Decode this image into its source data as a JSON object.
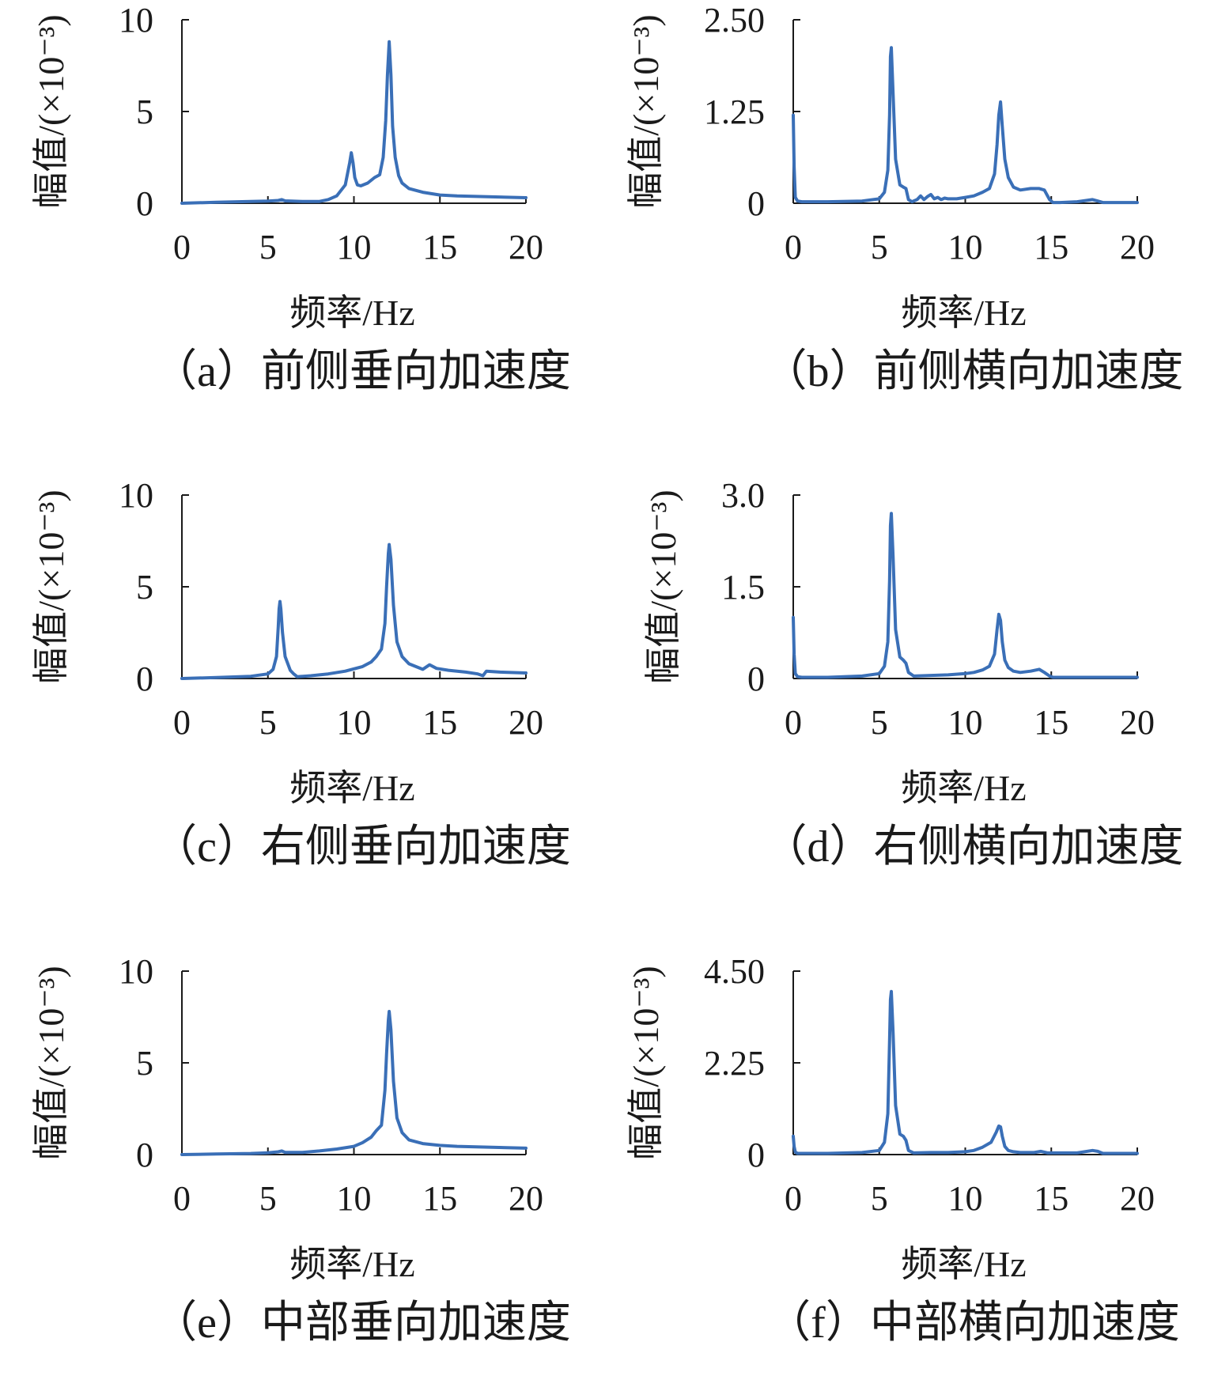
{
  "style": {
    "line_color": "#3a6fb7",
    "axis_color": "#1a1a1a"
  },
  "chart_data": [
    {
      "type": "line",
      "caption": "（a）前侧垂向加速度",
      "xlabel": "频率/Hz",
      "ylabel": "幅值/(×10⁻³)",
      "xlim": [
        0,
        20
      ],
      "ylim": [
        0,
        10
      ],
      "xticks": [
        "0",
        "5",
        "10",
        "15",
        "20"
      ],
      "yticks": [
        "0",
        "5",
        "10"
      ],
      "grid": false,
      "series": [
        {
          "x": [
            0,
            2,
            4,
            5,
            5.6,
            5.8,
            6,
            7,
            8,
            8.5,
            9,
            9.5,
            9.75,
            9.85,
            9.95,
            10.05,
            10.2,
            10.4,
            10.8,
            11.2,
            11.5,
            11.7,
            11.85,
            11.95,
            12.05,
            12.15,
            12.25,
            12.4,
            12.6,
            12.8,
            13.2,
            14,
            15,
            16,
            18,
            20
          ],
          "y": [
            0,
            0.05,
            0.1,
            0.12,
            0.15,
            0.2,
            0.13,
            0.1,
            0.1,
            0.2,
            0.4,
            1.0,
            2.2,
            2.75,
            2.2,
            1.4,
            1.0,
            0.95,
            1.1,
            1.4,
            1.55,
            2.5,
            4.5,
            7.0,
            8.8,
            7.0,
            4.2,
            2.5,
            1.5,
            1.1,
            0.8,
            0.6,
            0.45,
            0.4,
            0.35,
            0.3
          ]
        }
      ]
    },
    {
      "type": "line",
      "caption": "（b）前侧横向加速度",
      "xlabel": "频率/Hz",
      "ylabel": "幅值/(×10⁻³)",
      "xlim": [
        0,
        20
      ],
      "ylim": [
        0,
        2.5
      ],
      "xticks": [
        "0",
        "5",
        "10",
        "15",
        "20"
      ],
      "yticks": [
        "0",
        "1.25",
        "2.50"
      ],
      "grid": false,
      "series": [
        {
          "x": [
            0,
            0.05,
            0.12,
            0.25,
            0.5,
            2,
            4,
            5,
            5.3,
            5.5,
            5.6,
            5.65,
            5.7,
            5.8,
            5.95,
            6.2,
            6.4,
            6.55,
            6.7,
            6.9,
            7.2,
            7.4,
            7.6,
            7.8,
            8.0,
            8.2,
            8.4,
            8.6,
            8.8,
            9.0,
            9.5,
            10,
            10.5,
            11,
            11.4,
            11.7,
            11.85,
            11.95,
            12.05,
            12.15,
            12.3,
            12.5,
            12.8,
            13.2,
            13.8,
            14.3,
            14.6,
            14.9,
            15.1,
            15.5,
            16.5,
            17.4,
            17.7,
            18,
            19,
            20
          ],
          "y": [
            1.2,
            0.5,
            0.08,
            0.03,
            0.02,
            0.02,
            0.03,
            0.06,
            0.15,
            0.45,
            1.2,
            2.0,
            2.12,
            1.5,
            0.6,
            0.25,
            0.22,
            0.2,
            0.05,
            0.02,
            0.05,
            0.1,
            0.05,
            0.09,
            0.12,
            0.06,
            0.08,
            0.05,
            0.07,
            0.06,
            0.06,
            0.08,
            0.1,
            0.15,
            0.2,
            0.4,
            0.8,
            1.2,
            1.38,
            1.05,
            0.6,
            0.35,
            0.22,
            0.18,
            0.2,
            0.2,
            0.18,
            0.05,
            0.01,
            0.01,
            0.02,
            0.05,
            0.03,
            0.01,
            0.01,
            0.01
          ]
        }
      ]
    },
    {
      "type": "line",
      "caption": "（c）右侧垂向加速度",
      "xlabel": "频率/Hz",
      "ylabel": "幅值/(×10⁻³)",
      "xlim": [
        0,
        20
      ],
      "ylim": [
        0,
        10
      ],
      "xticks": [
        "0",
        "5",
        "10",
        "15",
        "20"
      ],
      "yticks": [
        "0",
        "5",
        "10"
      ],
      "grid": false,
      "series": [
        {
          "x": [
            0,
            2,
            4,
            5,
            5.3,
            5.5,
            5.6,
            5.65,
            5.7,
            5.75,
            5.85,
            6.0,
            6.3,
            6.5,
            6.7,
            7.5,
            8.5,
            9.5,
            10.5,
            11,
            11.3,
            11.6,
            11.8,
            11.9,
            12.0,
            12.05,
            12.15,
            12.3,
            12.5,
            12.8,
            13.2,
            14,
            14.4,
            14.8,
            15.5,
            16.5,
            17.2,
            17.5,
            17.7,
            18.5,
            20
          ],
          "y": [
            0,
            0.05,
            0.12,
            0.25,
            0.5,
            1.2,
            2.8,
            3.8,
            4.2,
            3.8,
            2.5,
            1.2,
            0.45,
            0.25,
            0.1,
            0.15,
            0.25,
            0.4,
            0.65,
            0.9,
            1.2,
            1.6,
            3.0,
            5.0,
            6.8,
            7.3,
            6.5,
            4.0,
            2.0,
            1.2,
            0.8,
            0.5,
            0.75,
            0.55,
            0.45,
            0.35,
            0.25,
            0.15,
            0.4,
            0.35,
            0.3
          ]
        }
      ]
    },
    {
      "type": "line",
      "caption": "（d）右侧横向加速度",
      "xlabel": "频率/Hz",
      "ylabel": "幅值/(×10⁻³)",
      "xlim": [
        0,
        20
      ],
      "ylim": [
        0,
        3.0
      ],
      "xticks": [
        "0",
        "5",
        "10",
        "15",
        "20"
      ],
      "yticks": [
        "0",
        "1.5",
        "3.0"
      ],
      "grid": false,
      "series": [
        {
          "x": [
            0,
            0.05,
            0.12,
            0.25,
            0.5,
            2,
            4,
            5,
            5.3,
            5.5,
            5.6,
            5.65,
            5.7,
            5.8,
            5.95,
            6.2,
            6.4,
            6.55,
            6.7,
            7,
            8,
            9,
            10,
            10.5,
            11,
            11.4,
            11.7,
            11.85,
            11.95,
            12.05,
            12.15,
            12.3,
            12.5,
            12.8,
            13.2,
            13.8,
            14.3,
            14.6,
            14.9,
            15.1,
            16,
            18,
            20
          ],
          "y": [
            1.0,
            0.4,
            0.08,
            0.03,
            0.02,
            0.02,
            0.04,
            0.08,
            0.2,
            0.6,
            1.6,
            2.5,
            2.7,
            2.0,
            0.8,
            0.35,
            0.3,
            0.25,
            0.1,
            0.04,
            0.05,
            0.06,
            0.08,
            0.1,
            0.14,
            0.2,
            0.4,
            0.8,
            1.05,
            0.95,
            0.6,
            0.3,
            0.18,
            0.12,
            0.1,
            0.12,
            0.15,
            0.1,
            0.04,
            0.02,
            0.02,
            0.02,
            0.02
          ]
        }
      ]
    },
    {
      "type": "line",
      "caption": "（e）中部垂向加速度",
      "xlabel": "频率/Hz",
      "ylabel": "幅值/(×10⁻³)",
      "xlim": [
        0,
        20
      ],
      "ylim": [
        0,
        10
      ],
      "xticks": [
        "0",
        "5",
        "10",
        "15",
        "20"
      ],
      "yticks": [
        "0",
        "5",
        "10"
      ],
      "grid": false,
      "series": [
        {
          "x": [
            0,
            2,
            4,
            5,
            5.6,
            5.8,
            6,
            7,
            8,
            9,
            10,
            10.5,
            11,
            11.3,
            11.6,
            11.8,
            11.9,
            12.0,
            12.05,
            12.15,
            12.3,
            12.5,
            12.8,
            13.2,
            14,
            15,
            16,
            18,
            20
          ],
          "y": [
            0,
            0.03,
            0.06,
            0.1,
            0.15,
            0.2,
            0.12,
            0.12,
            0.2,
            0.3,
            0.45,
            0.65,
            0.95,
            1.3,
            1.6,
            3.5,
            5.5,
            7.3,
            7.8,
            6.8,
            4.0,
            2.0,
            1.2,
            0.8,
            0.6,
            0.5,
            0.45,
            0.4,
            0.35
          ]
        }
      ]
    },
    {
      "type": "line",
      "caption": "（f）中部横向加速度",
      "xlabel": "频率/Hz",
      "ylabel": "幅值/(×10⁻³)",
      "xlim": [
        0,
        20
      ],
      "ylim": [
        0,
        4.5
      ],
      "xticks": [
        "0",
        "5",
        "10",
        "15",
        "20"
      ],
      "yticks": [
        "0",
        "2.25",
        "4.50"
      ],
      "grid": false,
      "series": [
        {
          "x": [
            0,
            0.05,
            0.12,
            0.25,
            0.5,
            2,
            4,
            5,
            5.3,
            5.5,
            5.6,
            5.65,
            5.7,
            5.8,
            5.95,
            6.2,
            6.4,
            6.55,
            6.7,
            7,
            8,
            9,
            10,
            10.5,
            11,
            11.5,
            11.8,
            11.95,
            12.05,
            12.15,
            12.3,
            12.5,
            12.8,
            13.2,
            14,
            14.4,
            14.8,
            15.5,
            16.5,
            17.4,
            17.7,
            18,
            19,
            20
          ],
          "y": [
            0.45,
            0.2,
            0.06,
            0.03,
            0.03,
            0.03,
            0.05,
            0.1,
            0.3,
            1.0,
            2.8,
            3.8,
            4.0,
            3.0,
            1.2,
            0.5,
            0.45,
            0.35,
            0.1,
            0.04,
            0.05,
            0.05,
            0.07,
            0.1,
            0.18,
            0.3,
            0.55,
            0.7,
            0.68,
            0.45,
            0.2,
            0.1,
            0.07,
            0.05,
            0.05,
            0.08,
            0.04,
            0.04,
            0.04,
            0.1,
            0.08,
            0.03,
            0.03,
            0.03
          ]
        }
      ]
    }
  ]
}
